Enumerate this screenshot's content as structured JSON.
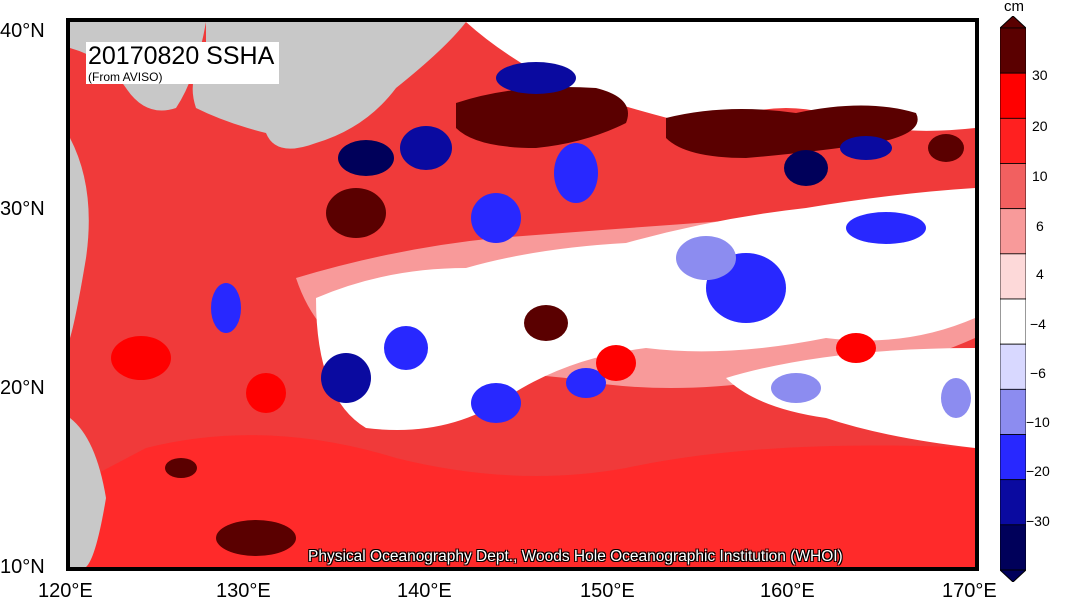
{
  "title": "20170820 SSHA",
  "subtitle": "(From AVISO)",
  "credit": "Physical Oceanography Dept., Woods Hole Oceanographic Institution (WHOI)",
  "colorbar": {
    "unit": "cm",
    "labels": [
      "30",
      "20",
      "10",
      "6",
      "4",
      "−4",
      "−6",
      "−10",
      "−20",
      "−30"
    ],
    "colors": [
      "#5a0000",
      "#ff0000",
      "#ff2020",
      "#f26060",
      "#f89a9a",
      "#fdd9d9",
      "#ffffff",
      "#d8d8ff",
      "#8c8cf0",
      "#2828ff",
      "#0a0aa0",
      "#00005a"
    ]
  },
  "axes": {
    "lat_labels": [
      "40°N",
      "30°N",
      "20°N",
      "10°N"
    ],
    "lon_labels": [
      "120°E",
      "130°E",
      "140°E",
      "150°E",
      "160°E",
      "170°E"
    ]
  },
  "colors": {
    "land": "#c8c8c8",
    "ocean_base": "#f03a3a"
  }
}
